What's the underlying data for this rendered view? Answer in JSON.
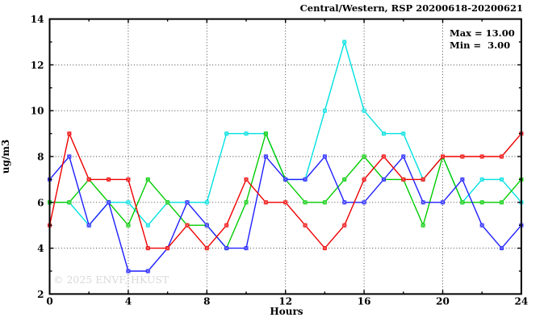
{
  "header": {
    "title": "Central/Western, RSP 20200618-20200621"
  },
  "legend": {
    "max_label": "Max = 13.00",
    "min_label": "Min =  3.00"
  },
  "watermark": "© 2025 ENVF, HKUST",
  "chart_data": {
    "type": "line",
    "title": "Central/Western, RSP 20200618-20200621",
    "xlabel": "Hours",
    "ylabel": "ug/m3",
    "xlim": [
      0,
      24
    ],
    "ylim": [
      2,
      14
    ],
    "grid": true,
    "grid_x": [
      4,
      8,
      12,
      16,
      20
    ],
    "grid_y": [
      4,
      6,
      8,
      10,
      12
    ],
    "xticks_major": [
      0,
      4,
      8,
      12,
      16,
      20,
      24
    ],
    "xticks_minor": [
      2,
      6,
      10,
      14,
      18,
      22
    ],
    "yticks_major": [
      2,
      4,
      6,
      8,
      10,
      12,
      14
    ],
    "yticks_minor": [
      3,
      5,
      7,
      9,
      11,
      13
    ],
    "x": [
      0,
      1,
      2,
      3,
      4,
      5,
      6,
      7,
      8,
      9,
      10,
      11,
      12,
      13,
      14,
      15,
      16,
      17,
      18,
      19,
      20,
      21,
      22,
      23,
      24
    ],
    "series": [
      {
        "name": "series-cyan",
        "color": "#00e0e0",
        "values": [
          6,
          6,
          5,
          6,
          6,
          5,
          6,
          6,
          6,
          9,
          9,
          9,
          7,
          7,
          10,
          13,
          10,
          9,
          9,
          7,
          8,
          6,
          7,
          7,
          6
        ]
      },
      {
        "name": "series-green",
        "color": "#00cc00",
        "values": [
          6,
          6,
          7,
          6,
          5,
          7,
          6,
          5,
          5,
          4,
          6,
          9,
          7,
          6,
          6,
          7,
          8,
          7,
          7,
          5,
          8,
          6,
          6,
          6,
          7
        ]
      },
      {
        "name": "series-blue",
        "color": "#1f1fff",
        "values": [
          7,
          8,
          5,
          6,
          3,
          3,
          4,
          6,
          5,
          4,
          4,
          8,
          7,
          7,
          8,
          6,
          6,
          7,
          8,
          6,
          6,
          7,
          5,
          4,
          5
        ]
      },
      {
        "name": "series-red",
        "color": "#ee0000",
        "values": [
          5,
          9,
          7,
          7,
          7,
          4,
          4,
          5,
          4,
          5,
          7,
          6,
          6,
          5,
          4,
          5,
          7,
          8,
          7,
          7,
          8,
          8,
          8,
          8,
          9
        ]
      }
    ],
    "stats": {
      "max": "13.00",
      "min": "3.00"
    }
  }
}
